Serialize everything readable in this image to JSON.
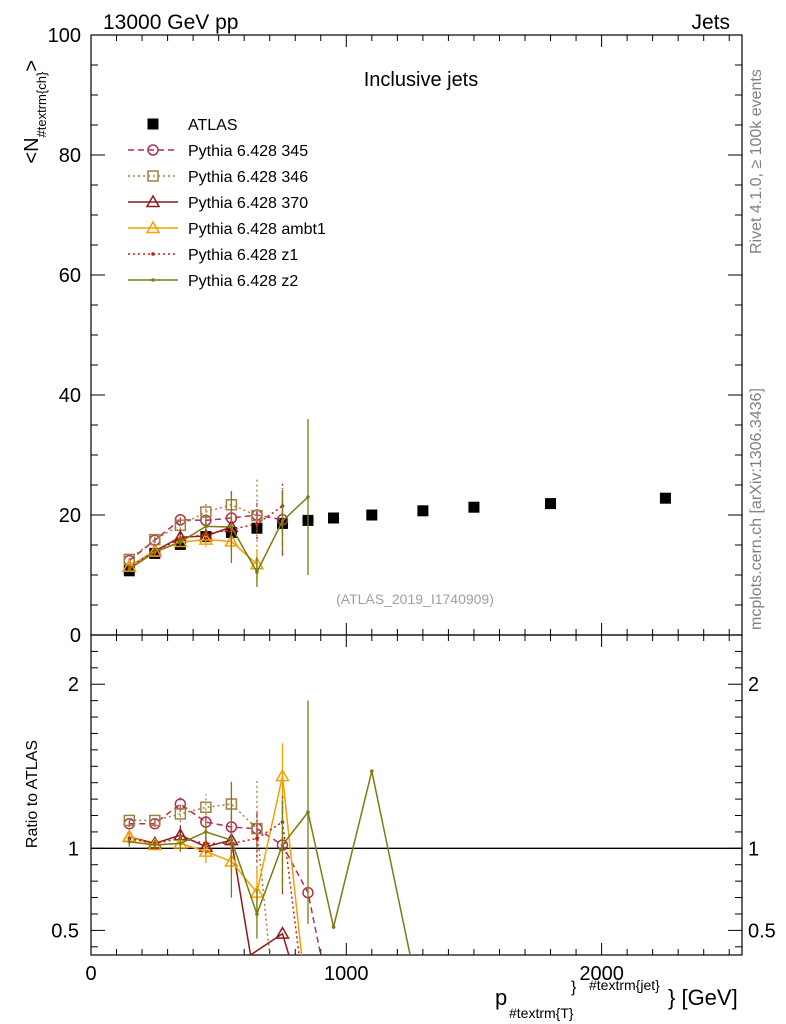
{
  "header": {
    "left": "13000 GeV pp",
    "right": "Jets"
  },
  "side_labels": {
    "rivet": "Rivet 4.1.0, ≥ 100k events",
    "mcplots": "mcplots.cern.ch [arXiv:1306.3436]"
  },
  "chart_data": [
    {
      "panel": "main",
      "type": "scatter",
      "title": "Inclusive jets",
      "watermark": "(ATLAS_2019_I1740909)",
      "ylabel": "<N_{#textrm{ch}}>",
      "xlim": [
        0,
        2550
      ],
      "ylim": [
        0,
        100
      ],
      "yticks": [
        0,
        20,
        40,
        60,
        80,
        100
      ],
      "series": [
        {
          "name": "ATLAS",
          "color": "#000000",
          "marker": "filled-square",
          "line": "none",
          "x": [
            150,
            250,
            350,
            450,
            550,
            650,
            750,
            850,
            950,
            1100,
            1300,
            1500,
            1800,
            2250
          ],
          "y": [
            10.7,
            13.6,
            15.1,
            16.4,
            17.1,
            17.8,
            18.6,
            19.1,
            19.5,
            20.0,
            20.7,
            21.3,
            21.9,
            22.8
          ]
        },
        {
          "name": "Pythia 6.428 345",
          "color": "#b03050",
          "marker": "open-circle",
          "line": "dashed",
          "x": [
            150,
            250,
            350,
            450,
            550,
            650,
            750
          ],
          "y": [
            12.4,
            15.8,
            19.2,
            19.1,
            19.5,
            20.0,
            19.2
          ],
          "err": [
            0.4,
            0.5,
            0.6,
            1.0,
            1.5,
            2.0,
            6.0
          ]
        },
        {
          "name": "Pythia 6.428 346",
          "color": "#a08040",
          "marker": "open-square",
          "line": "dotted",
          "x": [
            150,
            250,
            350,
            450,
            550,
            650
          ],
          "y": [
            12.6,
            15.9,
            18.3,
            20.5,
            21.7,
            19.9
          ],
          "err": [
            0.4,
            0.5,
            0.7,
            1.5,
            2.5,
            6.0
          ]
        },
        {
          "name": "Pythia 6.428 370",
          "color": "#8b1a1a",
          "marker": "open-triangle",
          "line": "solid",
          "x": [
            150,
            250,
            350,
            450,
            550
          ],
          "y": [
            11.4,
            14.0,
            16.3,
            16.5,
            18.0
          ],
          "err": [
            0.4,
            0.5,
            0.8,
            1.2,
            1.5
          ]
        },
        {
          "name": "Pythia 6.428 ambt1",
          "color": "#f5a000",
          "marker": "open-triangle",
          "line": "solid",
          "x": [
            150,
            250,
            350,
            450,
            550,
            650
          ],
          "y": [
            11.4,
            13.9,
            15.5,
            15.9,
            15.6,
            11.8
          ],
          "err": [
            0.4,
            0.5,
            0.8,
            1.2,
            1.5,
            2.5
          ]
        },
        {
          "name": "Pythia 6.428 z1",
          "color": "#c81818",
          "marker": "dot",
          "line": "dotted",
          "x": [
            150,
            250,
            350,
            450,
            550,
            650,
            750
          ],
          "y": [
            11.2,
            14.0,
            16.0,
            16.8,
            17.6,
            18.5,
            21.5
          ],
          "err": [
            0.4,
            0.5,
            0.6,
            1.0,
            1.5,
            2.5,
            3.0
          ]
        },
        {
          "name": "Pythia 6.428 z2",
          "color": "#7c7c10",
          "marker": "dot",
          "line": "solid",
          "x": [
            150,
            250,
            350,
            450,
            550,
            650,
            750,
            850
          ],
          "y": [
            11.0,
            13.8,
            15.5,
            18.1,
            18.0,
            10.5,
            19.0,
            23.0
          ],
          "err": [
            0.4,
            0.5,
            0.8,
            1.5,
            6.0,
            2.5,
            5.0,
            13.0
          ]
        }
      ]
    },
    {
      "panel": "ratio",
      "type": "line",
      "ylabel": "Ratio to ATLAS",
      "xlabel": "p_{#textrm{T}}^{#textrm{jet}} [GeV]",
      "xlim": [
        0,
        2550
      ],
      "ylim": [
        0.35,
        2.3
      ],
      "xticks": [
        0,
        1000,
        2000
      ],
      "yticks": [
        0.5,
        1,
        2
      ],
      "ytick_labels": [
        "0.5",
        "1",
        "2"
      ],
      "reference": 1,
      "series": [
        {
          "name": "Pythia 6.428 345",
          "x": [
            150,
            250,
            350,
            450,
            550,
            650,
            750,
            850,
            900
          ],
          "y": [
            1.15,
            1.15,
            1.27,
            1.16,
            1.13,
            1.12,
            1.02,
            0.73,
            0.35
          ],
          "err": [
            0.02,
            0.02,
            0.04,
            0.06,
            0.08,
            0.12,
            0.3,
            0.0,
            0.0
          ]
        },
        {
          "name": "Pythia 6.428 346",
          "x": [
            150,
            250,
            350,
            450,
            550,
            650,
            700
          ],
          "y": [
            1.17,
            1.17,
            1.21,
            1.25,
            1.27,
            1.12,
            0.35
          ],
          "err": [
            0.03,
            0.03,
            0.05,
            0.08,
            0.15,
            0.3,
            0.0
          ]
        },
        {
          "name": "Pythia 6.428 370",
          "x": [
            150,
            250,
            350,
            450,
            550,
            625,
            750,
            775
          ],
          "y": [
            1.07,
            1.03,
            1.08,
            1.01,
            1.05,
            0.35,
            0.48,
            0.35
          ],
          "err": [
            0.03,
            0.03,
            0.06,
            0.07,
            0.09,
            0.0,
            0.0,
            0.0
          ]
        },
        {
          "name": "Pythia 6.428 ambt1",
          "x": [
            150,
            250,
            350,
            450,
            550,
            650,
            750,
            825
          ],
          "y": [
            1.07,
            1.02,
            1.03,
            0.98,
            0.92,
            0.73,
            1.44,
            0.35
          ],
          "err": [
            0.03,
            0.03,
            0.05,
            0.07,
            0.09,
            0.15,
            0.2,
            0.0
          ]
        },
        {
          "name": "Pythia 6.428 z1",
          "x": [
            150,
            250,
            350,
            450,
            550,
            650,
            750,
            815
          ],
          "y": [
            1.06,
            1.03,
            1.06,
            1.03,
            1.03,
            1.06,
            1.16,
            0.35
          ],
          "err": [
            0.03,
            0.03,
            0.04,
            0.06,
            0.08,
            0.14,
            0.16,
            0.0
          ]
        },
        {
          "name": "Pythia 6.428 z2",
          "x": [
            150,
            250,
            350,
            450,
            550,
            650,
            750,
            850,
            950,
            1100,
            1250
          ],
          "y": [
            1.04,
            1.02,
            1.03,
            1.1,
            1.05,
            0.6,
            1.02,
            1.22,
            0.52,
            1.47,
            0.35
          ],
          "err": [
            0.03,
            0.03,
            0.05,
            0.08,
            0.35,
            0.15,
            0.27,
            0.68,
            0.0,
            0.0,
            0.0
          ]
        }
      ]
    }
  ]
}
